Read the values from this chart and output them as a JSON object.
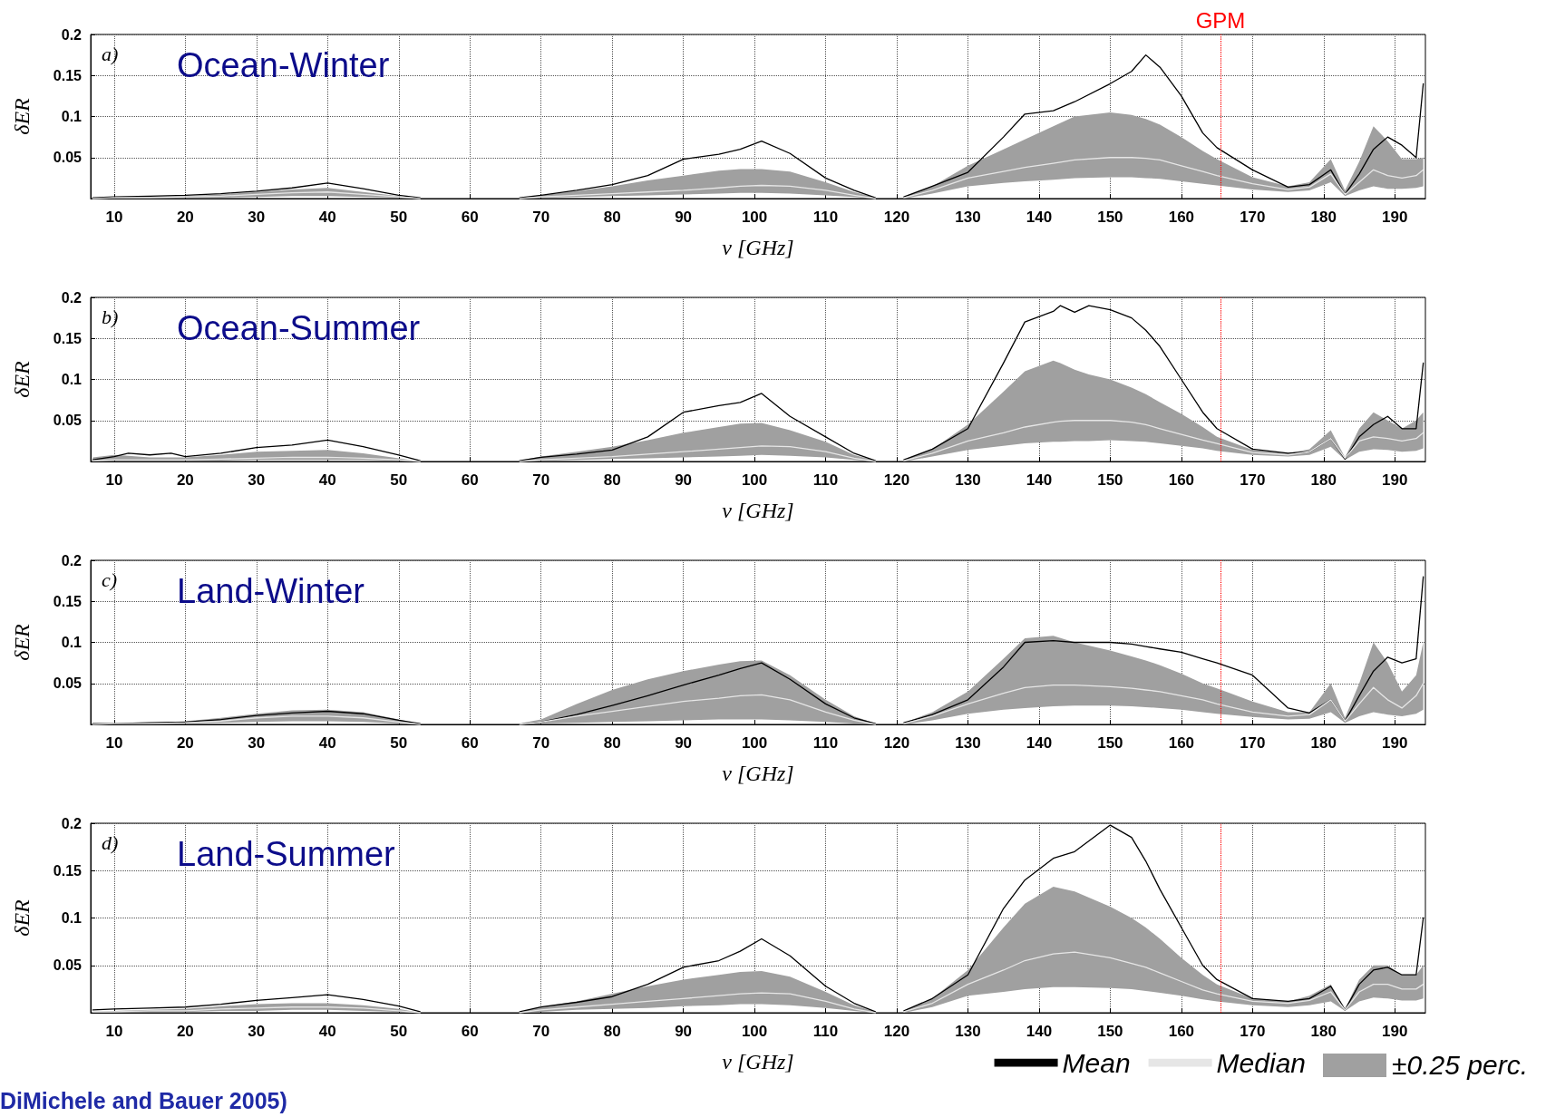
{
  "chart_data": [
    {
      "type": "line",
      "title": "Ocean-Winter",
      "annotations": [
        "a)"
      ],
      "xlabel": "ν [GHz]",
      "ylabel": "δER",
      "xlim": [
        6.7,
        194.3
      ],
      "xticks": [
        10,
        20,
        30,
        40,
        50,
        60,
        70,
        80,
        90,
        100,
        110,
        120,
        130,
        140,
        150,
        160,
        170,
        180,
        190
      ],
      "ylim": [
        0,
        0.2
      ],
      "yticks": [
        0.05,
        0.1,
        0.15,
        0.2
      ],
      "grid": true,
      "marker": "none",
      "line_style": "solid",
      "ref_lines": [
        {
          "axis": "x",
          "value": 165.5,
          "label": "GPM",
          "color": "#ff0000",
          "line_style": "dotted"
        }
      ],
      "x": [
        7,
        10,
        15,
        20,
        25,
        30,
        35,
        40,
        45,
        50,
        53,
        60,
        67,
        70,
        75,
        80,
        85,
        90,
        95,
        98,
        101,
        105,
        110,
        114,
        117,
        119,
        121,
        125,
        130,
        135,
        138,
        142,
        145,
        150,
        153,
        155,
        157,
        160,
        163,
        165,
        170,
        175,
        178,
        181,
        183,
        185,
        187,
        189,
        191,
        193,
        194
      ],
      "series": [
        {
          "color": "#000000",
          "values": [
            0.001,
            0.002,
            0.003,
            0.004,
            0.006,
            0.009,
            0.013,
            0.019,
            0.012,
            0.004,
            0.001,
            null,
            0.001,
            0.004,
            0.01,
            0.017,
            0.028,
            0.048,
            0.054,
            0.06,
            0.07,
            0.055,
            0.025,
            0.01,
            0.001,
            null,
            0.002,
            0.015,
            0.032,
            0.075,
            0.103,
            0.107,
            0.118,
            0.14,
            0.155,
            0.175,
            0.16,
            0.125,
            0.08,
            0.062,
            0.035,
            0.014,
            0.017,
            0.035,
            0.005,
            0.03,
            0.06,
            0.075,
            0.065,
            0.05,
            0.14
          ]
        },
        {
          "color": "#e6e6e6",
          "values": [
            0,
            0.001,
            0.001,
            0.002,
            0.003,
            0.005,
            0.007,
            0.008,
            0.005,
            0.002,
            0,
            null,
            0,
            0.002,
            0.004,
            0.006,
            0.008,
            0.01,
            0.013,
            0.015,
            0.016,
            0.015,
            0.01,
            0.004,
            0,
            null,
            0.001,
            0.01,
            0.025,
            0.033,
            0.038,
            0.043,
            0.047,
            0.05,
            0.05,
            0.049,
            0.047,
            0.04,
            0.033,
            0.028,
            0.018,
            0.011,
            0.014,
            0.03,
            0.005,
            0.02,
            0.035,
            0.028,
            0.025,
            0.028,
            0.035
          ],
          "lower": [
            0,
            0,
            0.001,
            0.001,
            0.001,
            0.002,
            0.003,
            0.003,
            0.002,
            0.001,
            0,
            null,
            0,
            0.001,
            0.002,
            0.003,
            0.004,
            0.005,
            0.006,
            0.007,
            0.007,
            0.006,
            0.004,
            0.002,
            0,
            null,
            0,
            0.006,
            0.015,
            0.019,
            0.021,
            0.023,
            0.025,
            0.026,
            0.026,
            0.025,
            0.024,
            0.021,
            0.018,
            0.016,
            0.011,
            0.008,
            0.01,
            0.02,
            0.003,
            0.01,
            0.015,
            0.012,
            0.012,
            0.013,
            0.015
          ],
          "upper": [
            0,
            0.001,
            0.002,
            0.003,
            0.005,
            0.008,
            0.011,
            0.013,
            0.008,
            0.003,
            0,
            null,
            0.001,
            0.004,
            0.009,
            0.015,
            0.022,
            0.028,
            0.034,
            0.036,
            0.036,
            0.033,
            0.02,
            0.008,
            0.001,
            null,
            0.002,
            0.015,
            0.04,
            0.06,
            0.072,
            0.088,
            0.1,
            0.105,
            0.102,
            0.097,
            0.09,
            0.075,
            0.058,
            0.048,
            0.026,
            0.015,
            0.02,
            0.048,
            0.01,
            0.045,
            0.088,
            0.07,
            0.048,
            0.048,
            0.05
          ]
        }
      ]
    },
    {
      "type": "line",
      "title": "Ocean-Summer",
      "annotations": [
        "b)"
      ],
      "xlabel": "ν [GHz]",
      "ylabel": "δER",
      "xlim": [
        6.7,
        194.3
      ],
      "xticks": [
        10,
        20,
        30,
        40,
        50,
        60,
        70,
        80,
        90,
        100,
        110,
        120,
        130,
        140,
        150,
        160,
        170,
        180,
        190
      ],
      "ylim": [
        0,
        0.2
      ],
      "yticks": [
        0.05,
        0.1,
        0.15,
        0.2
      ],
      "grid": true,
      "marker": "none",
      "line_style": "solid",
      "ref_lines": [
        {
          "axis": "x",
          "value": 165.5,
          "label": null,
          "color": "#ff0000",
          "line_style": "dotted"
        }
      ],
      "x": [
        7,
        10,
        12,
        15,
        18,
        20,
        25,
        30,
        35,
        40,
        45,
        50,
        53,
        60,
        67,
        70,
        75,
        80,
        85,
        90,
        95,
        98,
        101,
        105,
        110,
        114,
        117,
        119,
        121,
        125,
        130,
        135,
        138,
        142,
        143,
        145,
        147,
        150,
        153,
        155,
        157,
        160,
        163,
        165,
        170,
        175,
        178,
        181,
        183,
        185,
        187,
        189,
        191,
        193,
        194
      ],
      "series": [
        {
          "color": "#000000",
          "values": [
            0.002,
            0.006,
            0.01,
            0.008,
            0.01,
            0.006,
            0.01,
            0.017,
            0.02,
            0.026,
            0.018,
            0.008,
            0.001,
            null,
            0.001,
            0.005,
            0.009,
            0.014,
            0.03,
            0.06,
            0.068,
            0.072,
            0.083,
            0.055,
            0.03,
            0.01,
            0.001,
            null,
            0.002,
            0.015,
            0.04,
            0.12,
            0.17,
            0.183,
            0.19,
            0.182,
            0.19,
            0.185,
            0.175,
            0.16,
            0.14,
            0.1,
            0.06,
            0.04,
            0.015,
            0.01,
            0.012,
            0.028,
            0.003,
            0.03,
            0.045,
            0.055,
            0.04,
            0.04,
            0.12
          ]
        },
        {
          "color": "#e6e6e6",
          "values": [
            0.001,
            0.002,
            0.002,
            0.002,
            0.002,
            0.002,
            0.003,
            0.004,
            0.005,
            0.005,
            0.004,
            0.002,
            0,
            null,
            0,
            0.002,
            0.004,
            0.006,
            0.009,
            0.012,
            0.015,
            0.017,
            0.019,
            0.018,
            0.012,
            0.004,
            0,
            null,
            0.001,
            0.01,
            0.025,
            0.035,
            0.042,
            0.048,
            0.049,
            0.05,
            0.05,
            0.05,
            0.048,
            0.045,
            0.04,
            0.033,
            0.026,
            0.022,
            0.011,
            0.008,
            0.012,
            0.028,
            0.004,
            0.025,
            0.03,
            0.028,
            0.025,
            0.028,
            0.035
          ],
          "lower": [
            0,
            0.001,
            0.001,
            0.001,
            0.001,
            0.001,
            0.001,
            0.002,
            0.002,
            0.002,
            0.002,
            0.001,
            0,
            null,
            0,
            0.001,
            0.002,
            0.003,
            0.004,
            0.005,
            0.006,
            0.007,
            0.008,
            0.007,
            0.005,
            0.002,
            0,
            null,
            0,
            0.006,
            0.014,
            0.019,
            0.022,
            0.024,
            0.024,
            0.025,
            0.025,
            0.026,
            0.025,
            0.024,
            0.022,
            0.019,
            0.016,
            0.013,
            0.008,
            0.006,
            0.008,
            0.018,
            0.002,
            0.012,
            0.015,
            0.014,
            0.012,
            0.013,
            0.016
          ],
          "upper": [
            0.005,
            0.008,
            0.007,
            0.005,
            0.005,
            0.005,
            0.008,
            0.012,
            0.013,
            0.014,
            0.01,
            0.004,
            0,
            null,
            0.001,
            0.006,
            0.012,
            0.018,
            0.026,
            0.035,
            0.042,
            0.046,
            0.047,
            0.038,
            0.024,
            0.008,
            0.001,
            null,
            0.002,
            0.015,
            0.045,
            0.085,
            0.11,
            0.123,
            0.12,
            0.112,
            0.106,
            0.1,
            0.09,
            0.082,
            0.072,
            0.058,
            0.042,
            0.03,
            0.014,
            0.01,
            0.015,
            0.038,
            0.005,
            0.04,
            0.06,
            0.05,
            0.04,
            0.05,
            0.06
          ]
        }
      ]
    },
    {
      "type": "line",
      "title": "Land-Winter",
      "annotations": [
        "c)"
      ],
      "xlabel": "ν [GHz]",
      "ylabel": "δER",
      "xlim": [
        6.7,
        194.3
      ],
      "xticks": [
        10,
        20,
        30,
        40,
        50,
        60,
        70,
        80,
        90,
        100,
        110,
        120,
        130,
        140,
        150,
        160,
        170,
        180,
        190
      ],
      "ylim": [
        0,
        0.2
      ],
      "yticks": [
        0.05,
        0.1,
        0.15,
        0.2
      ],
      "grid": true,
      "marker": "none",
      "line_style": "solid",
      "ref_lines": [
        {
          "axis": "x",
          "value": 165.5,
          "label": null,
          "color": "#ff0000",
          "line_style": "dotted"
        }
      ],
      "x": [
        7,
        10,
        15,
        20,
        25,
        30,
        35,
        40,
        45,
        50,
        53,
        60,
        67,
        70,
        75,
        80,
        85,
        90,
        95,
        98,
        101,
        105,
        110,
        114,
        117,
        119,
        121,
        125,
        130,
        135,
        138,
        142,
        145,
        150,
        153,
        155,
        157,
        160,
        163,
        165,
        170,
        175,
        178,
        181,
        183,
        185,
        187,
        189,
        191,
        193,
        194
      ],
      "series": [
        {
          "color": "#000000",
          "values": [
            0.001,
            0.001,
            0.002,
            0.003,
            0.006,
            0.011,
            0.014,
            0.016,
            0.013,
            0.005,
            0.001,
            null,
            0,
            0.003,
            0.012,
            0.023,
            0.035,
            0.048,
            0.06,
            0.068,
            0.075,
            0.055,
            0.025,
            0.008,
            0.001,
            null,
            0.002,
            0.012,
            0.03,
            0.07,
            0.1,
            0.102,
            0.1,
            0.1,
            0.098,
            0.095,
            0.092,
            0.088,
            0.08,
            0.075,
            0.06,
            0.02,
            0.014,
            0.03,
            0.004,
            0.035,
            0.065,
            0.082,
            0.075,
            0.08,
            0.18
          ]
        },
        {
          "color": "#e6e6e6",
          "values": [
            0,
            0.001,
            0.001,
            0.002,
            0.004,
            0.008,
            0.01,
            0.01,
            0.008,
            0.003,
            0,
            null,
            0,
            0.003,
            0.01,
            0.016,
            0.022,
            0.028,
            0.032,
            0.035,
            0.036,
            0.03,
            0.015,
            0.005,
            0,
            null,
            0.001,
            0.01,
            0.025,
            0.038,
            0.045,
            0.048,
            0.048,
            0.046,
            0.044,
            0.042,
            0.04,
            0.035,
            0.03,
            0.025,
            0.015,
            0.01,
            0.012,
            0.03,
            0.004,
            0.025,
            0.045,
            0.03,
            0.02,
            0.035,
            0.05
          ],
          "lower": [
            0,
            0,
            0.001,
            0.001,
            0.002,
            0.003,
            0.004,
            0.004,
            0.003,
            0.001,
            0,
            null,
            0,
            0.001,
            0.002,
            0.003,
            0.004,
            0.005,
            0.006,
            0.006,
            0.006,
            0.005,
            0.003,
            0.001,
            0,
            null,
            0,
            0.005,
            0.013,
            0.018,
            0.02,
            0.022,
            0.023,
            0.023,
            0.022,
            0.021,
            0.02,
            0.018,
            0.015,
            0.013,
            0.009,
            0.006,
            0.007,
            0.015,
            0.002,
            0.01,
            0.015,
            0.012,
            0.01,
            0.013,
            0.018
          ],
          "upper": [
            0,
            0.001,
            0.002,
            0.004,
            0.008,
            0.013,
            0.017,
            0.018,
            0.015,
            0.006,
            0,
            null,
            0.001,
            0.006,
            0.025,
            0.042,
            0.055,
            0.065,
            0.073,
            0.077,
            0.078,
            0.06,
            0.03,
            0.01,
            0.001,
            null,
            0.002,
            0.015,
            0.04,
            0.08,
            0.105,
            0.108,
            0.1,
            0.09,
            0.083,
            0.078,
            0.072,
            0.062,
            0.05,
            0.044,
            0.028,
            0.015,
            0.015,
            0.05,
            0.008,
            0.05,
            0.1,
            0.075,
            0.04,
            0.06,
            0.1
          ]
        }
      ]
    },
    {
      "type": "line",
      "title": "Land-Summer",
      "annotations": [
        "d)",
        "±0.25 perc.",
        "DiMichele and Bauer 2005)"
      ],
      "xlabel": "ν [GHz]",
      "ylabel": "δER",
      "xlim": [
        6.7,
        194.3
      ],
      "xticks": [
        10,
        20,
        30,
        40,
        50,
        60,
        70,
        80,
        90,
        100,
        110,
        120,
        130,
        140,
        150,
        160,
        170,
        180,
        190
      ],
      "ylim": [
        0,
        0.2
      ],
      "yticks": [
        0.05,
        0.1,
        0.15,
        0.2
      ],
      "grid": true,
      "marker": "none",
      "line_style": "solid",
      "legend": "bottom right",
      "ref_lines": [
        {
          "axis": "x",
          "value": 165.5,
          "label": null,
          "color": "#ff0000",
          "line_style": "dotted"
        }
      ],
      "x": [
        7,
        10,
        15,
        20,
        25,
        30,
        35,
        40,
        45,
        50,
        53,
        60,
        67,
        70,
        75,
        80,
        85,
        90,
        95,
        98,
        101,
        105,
        110,
        114,
        117,
        119,
        121,
        125,
        130,
        135,
        138,
        142,
        145,
        150,
        153,
        155,
        157,
        160,
        163,
        165,
        170,
        175,
        178,
        181,
        183,
        185,
        187,
        189,
        191,
        193,
        194
      ],
      "series": [
        {
          "name": "Mean",
          "color": "#000000",
          "values": [
            0.003,
            0.004,
            0.005,
            0.006,
            0.009,
            0.013,
            0.016,
            0.019,
            0.014,
            0.007,
            0.001,
            null,
            0.001,
            0.006,
            0.011,
            0.017,
            0.03,
            0.048,
            0.055,
            0.065,
            0.078,
            0.06,
            0.028,
            0.01,
            0.001,
            null,
            0.002,
            0.015,
            0.04,
            0.11,
            0.14,
            0.163,
            0.17,
            0.198,
            0.185,
            0.16,
            0.13,
            0.09,
            0.05,
            0.035,
            0.015,
            0.012,
            0.015,
            0.028,
            0.003,
            0.03,
            0.045,
            0.048,
            0.04,
            0.04,
            0.1
          ]
        },
        {
          "name": "Median",
          "color": "#e6e6e6",
          "values": [
            0.001,
            0.001,
            0.002,
            0.002,
            0.004,
            0.005,
            0.006,
            0.006,
            0.005,
            0.002,
            0,
            null,
            0,
            0.003,
            0.006,
            0.009,
            0.012,
            0.015,
            0.018,
            0.02,
            0.021,
            0.02,
            0.012,
            0.004,
            0,
            null,
            0.001,
            0.01,
            0.03,
            0.045,
            0.055,
            0.062,
            0.064,
            0.058,
            0.052,
            0.048,
            0.042,
            0.033,
            0.024,
            0.02,
            0.012,
            0.01,
            0.013,
            0.022,
            0.003,
            0.022,
            0.03,
            0.03,
            0.025,
            0.025,
            0.03
          ],
          "lower": [
            0,
            0,
            0.001,
            0.001,
            0.002,
            0.002,
            0.003,
            0.003,
            0.002,
            0.001,
            0,
            null,
            0,
            0.001,
            0.003,
            0.004,
            0.005,
            0.007,
            0.008,
            0.009,
            0.009,
            0.008,
            0.005,
            0.002,
            0,
            null,
            0,
            0.006,
            0.018,
            0.022,
            0.025,
            0.027,
            0.027,
            0.026,
            0.025,
            0.023,
            0.021,
            0.018,
            0.014,
            0.012,
            0.008,
            0.006,
            0.008,
            0.012,
            0.002,
            0.012,
            0.016,
            0.015,
            0.013,
            0.013,
            0.015
          ],
          "upper": [
            0.001,
            0.002,
            0.003,
            0.004,
            0.007,
            0.009,
            0.01,
            0.01,
            0.008,
            0.004,
            0,
            null,
            0.001,
            0.006,
            0.012,
            0.02,
            0.028,
            0.035,
            0.04,
            0.043,
            0.044,
            0.038,
            0.022,
            0.008,
            0.001,
            null,
            0.002,
            0.015,
            0.045,
            0.09,
            0.115,
            0.133,
            0.128,
            0.112,
            0.1,
            0.09,
            0.078,
            0.058,
            0.04,
            0.03,
            0.015,
            0.012,
            0.018,
            0.03,
            0.004,
            0.035,
            0.05,
            0.05,
            0.04,
            0.04,
            0.05
          ]
        }
      ]
    }
  ]
}
